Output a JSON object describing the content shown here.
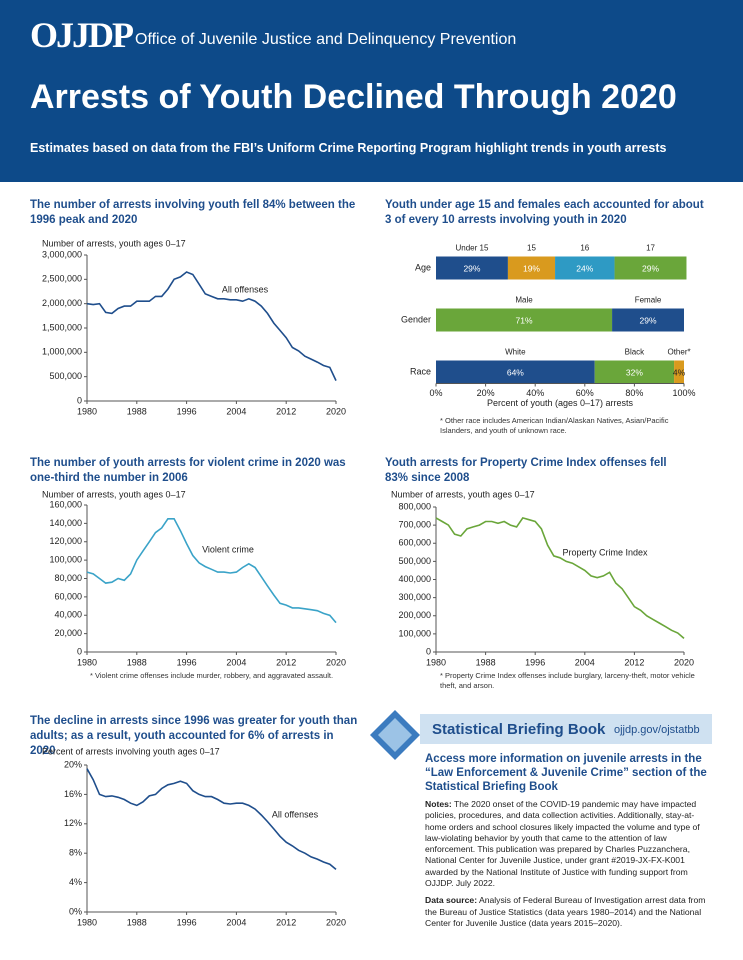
{
  "header": {
    "logo": "OJJDP",
    "org": "Office of Juvenile Justice and Delinquency Prevention",
    "title": "Arrests of Youth Declined Through 2020",
    "subtitle": "Estimates based on data from the FBI’s Uniform Crime Reporting Program highlight trends in youth arrests"
  },
  "chart_data": [
    {
      "type": "line",
      "title": "The number of arrests involving youth fell 84% between the 1996 peak and 2020",
      "ylabel": "Number of arrests, youth ages 0–17",
      "annotation": "All offenses",
      "color": "#1f4e8c",
      "x": [
        1980,
        1981,
        1982,
        1983,
        1984,
        1985,
        1986,
        1987,
        1988,
        1989,
        1990,
        1991,
        1992,
        1993,
        1994,
        1995,
        1996,
        1997,
        1998,
        1999,
        2000,
        2001,
        2002,
        2003,
        2004,
        2005,
        2006,
        2007,
        2008,
        2009,
        2010,
        2011,
        2012,
        2013,
        2014,
        2015,
        2016,
        2017,
        2018,
        2019,
        2020
      ],
      "values": [
        2000000,
        1980000,
        2000000,
        1820000,
        1800000,
        1900000,
        1950000,
        1950000,
        2050000,
        2050000,
        2050000,
        2150000,
        2150000,
        2300000,
        2500000,
        2550000,
        2650000,
        2600000,
        2400000,
        2200000,
        2150000,
        2100000,
        2100000,
        2080000,
        2080000,
        2050000,
        2100000,
        2050000,
        1950000,
        1800000,
        1600000,
        1450000,
        1300000,
        1100000,
        1030000,
        920000,
        860000,
        800000,
        730000,
        690000,
        420000
      ],
      "xlim": [
        1980,
        2020
      ],
      "xticks": [
        1980,
        1988,
        1996,
        2004,
        2012,
        2020
      ],
      "ylim": [
        0,
        3000000
      ],
      "yticks": [
        0,
        {
          "value": 500000,
          "label": "500,000"
        },
        {
          "value": 1000000,
          "label": "1,000,000"
        },
        {
          "value": 1500000,
          "label": "1,500,000"
        },
        {
          "value": 2000000,
          "label": "2,000,000"
        },
        {
          "value": 2500000,
          "label": "2,500,000"
        },
        {
          "value": 3000000,
          "label": "3,000,000"
        }
      ]
    },
    {
      "type": "stacked_bar",
      "title": "Youth under age 15 and females each accounted for about 3 of every 10 arrests involving youth in 2020",
      "xlabel": "Percent of youth (ages 0–17) arrests",
      "footnote": "* Other race includes American Indian/Alaskan Natives, Asian/Pacific Islanders, and youth of unknown race.",
      "rows": [
        {
          "label": "Age",
          "segments": [
            "Under 15",
            "15",
            "16",
            "17"
          ],
          "values": [
            29,
            19,
            24,
            29
          ],
          "value_labels": [
            "29%",
            "19%",
            "24%",
            "29%"
          ],
          "colors": [
            "#1f4e8c",
            "#d99a1e",
            "#2e9ac4",
            "#6aa63a"
          ]
        },
        {
          "label": "Gender",
          "segments": [
            "Male",
            "Female"
          ],
          "values": [
            71,
            29
          ],
          "value_labels": [
            "71%",
            "29%"
          ],
          "colors": [
            "#6aa63a",
            "#1f4e8c"
          ]
        },
        {
          "label": "Race",
          "segments": [
            "White",
            "Black",
            "Other*"
          ],
          "values": [
            64,
            32,
            4
          ],
          "value_labels": [
            "64%",
            "32%",
            "4%"
          ],
          "colors": [
            "#1f4e8c",
            "#6aa63a",
            "#d99a1e"
          ]
        }
      ],
      "xlim": [
        0,
        100
      ],
      "xticks": [
        {
          "value": 0,
          "label": "0%"
        },
        {
          "value": 20,
          "label": "20%"
        },
        {
          "value": 40,
          "label": "40%"
        },
        {
          "value": 60,
          "label": "60%"
        },
        {
          "value": 80,
          "label": "80%"
        },
        {
          "value": 100,
          "label": "100%"
        }
      ]
    },
    {
      "type": "line",
      "title": "The number of youth arrests for violent crime in 2020 was one-third the number in 2006",
      "ylabel": "Number of arrests, youth ages 0–17",
      "annotation": "Violent crime",
      "footnote": "* Violent crime offenses include murder, robbery, and aggravated assault.",
      "color": "#3aa3c8",
      "x": [
        1980,
        1981,
        1982,
        1983,
        1984,
        1985,
        1986,
        1987,
        1988,
        1989,
        1990,
        1991,
        1992,
        1993,
        1994,
        1995,
        1996,
        1997,
        1998,
        1999,
        2000,
        2001,
        2002,
        2003,
        2004,
        2005,
        2006,
        2007,
        2008,
        2009,
        2010,
        2011,
        2012,
        2013,
        2014,
        2015,
        2016,
        2017,
        2018,
        2019,
        2020
      ],
      "values": [
        87000,
        85000,
        80000,
        75000,
        76000,
        80000,
        78000,
        85000,
        100000,
        110000,
        120000,
        130000,
        135000,
        145000,
        145000,
        132000,
        118000,
        105000,
        97000,
        93000,
        90000,
        87000,
        87000,
        86000,
        87000,
        92000,
        96000,
        92000,
        82000,
        72000,
        62000,
        53000,
        51000,
        48000,
        48000,
        47000,
        46000,
        45000,
        42000,
        40000,
        32000
      ],
      "xlim": [
        1980,
        2020
      ],
      "xticks": [
        1980,
        1988,
        1996,
        2004,
        2012,
        2020
      ],
      "ylim": [
        0,
        160000
      ],
      "yticks": [
        0,
        {
          "value": 20000,
          "label": "20,000"
        },
        {
          "value": 40000,
          "label": "40,000"
        },
        {
          "value": 60000,
          "label": "60,000"
        },
        {
          "value": 80000,
          "label": "80,000"
        },
        {
          "value": 100000,
          "label": "100,000"
        },
        {
          "value": 120000,
          "label": "120,000"
        },
        {
          "value": 140000,
          "label": "140,000"
        },
        {
          "value": 160000,
          "label": "160,000"
        }
      ]
    },
    {
      "type": "line",
      "title": "Youth arrests for Property Crime Index offenses fell 83% since 2008",
      "ylabel": "Number of arrests, youth ages 0–17",
      "annotation": "Property Crime Index",
      "footnote": "* Property Crime Index offenses include burglary, larceny-theft, motor vehicle theft, and arson.",
      "color": "#6aa63a",
      "x": [
        1980,
        1981,
        1982,
        1983,
        1984,
        1985,
        1986,
        1987,
        1988,
        1989,
        1990,
        1991,
        1992,
        1993,
        1994,
        1995,
        1996,
        1997,
        1998,
        1999,
        2000,
        2001,
        2002,
        2003,
        2004,
        2005,
        2006,
        2007,
        2008,
        2009,
        2010,
        2011,
        2012,
        2013,
        2014,
        2015,
        2016,
        2017,
        2018,
        2019,
        2020
      ],
      "values": [
        740000,
        720000,
        700000,
        650000,
        640000,
        680000,
        690000,
        700000,
        720000,
        720000,
        710000,
        720000,
        700000,
        690000,
        740000,
        730000,
        720000,
        680000,
        590000,
        530000,
        520000,
        500000,
        490000,
        470000,
        450000,
        420000,
        410000,
        420000,
        440000,
        380000,
        350000,
        300000,
        250000,
        230000,
        200000,
        180000,
        160000,
        140000,
        120000,
        105000,
        75000
      ],
      "xlim": [
        1980,
        2020
      ],
      "xticks": [
        1980,
        1988,
        1996,
        2004,
        2012,
        2020
      ],
      "ylim": [
        0,
        800000
      ],
      "yticks": [
        0,
        {
          "value": 100000,
          "label": "100,000"
        },
        {
          "value": 200000,
          "label": "200,000"
        },
        {
          "value": 300000,
          "label": "300,000"
        },
        {
          "value": 400000,
          "label": "400,000"
        },
        {
          "value": 500000,
          "label": "500,000"
        },
        {
          "value": 600000,
          "label": "600,000"
        },
        {
          "value": 700000,
          "label": "700,000"
        },
        {
          "value": 800000,
          "label": "800,000"
        }
      ]
    },
    {
      "type": "line",
      "title": "The decline in arrests since 1996 was greater for youth than adults; as a result, youth accounted for 6% of arrests in 2020",
      "ylabel": "Percent of arrests involving youth ages 0–17",
      "annotation": "All offenses",
      "color": "#1f4e8c",
      "x": [
        1980,
        1981,
        1982,
        1983,
        1984,
        1985,
        1986,
        1987,
        1988,
        1989,
        1990,
        1991,
        1992,
        1993,
        1994,
        1995,
        1996,
        1997,
        1998,
        1999,
        2000,
        2001,
        2002,
        2003,
        2004,
        2005,
        2006,
        2007,
        2008,
        2009,
        2010,
        2011,
        2012,
        2013,
        2014,
        2015,
        2016,
        2017,
        2018,
        2019,
        2020
      ],
      "values": [
        19.5,
        18,
        16,
        15.7,
        15.8,
        15.6,
        15.3,
        14.8,
        14.5,
        15,
        15.8,
        16,
        16.8,
        17.3,
        17.5,
        17.8,
        17.5,
        16.5,
        16,
        15.7,
        15.7,
        15.3,
        14.8,
        14.7,
        14.8,
        14.8,
        14.5,
        14,
        13.2,
        12.3,
        11.3,
        10.3,
        9.5,
        9,
        8.4,
        8,
        7.5,
        7.2,
        6.8,
        6.5,
        5.8
      ],
      "xlim": [
        1980,
        2020
      ],
      "xticks": [
        1980,
        1988,
        1996,
        2004,
        2012,
        2020
      ],
      "ylim": [
        0,
        20
      ],
      "yticks": [
        {
          "value": 0,
          "label": "0%"
        },
        {
          "value": 4,
          "label": "4%"
        },
        {
          "value": 8,
          "label": "8%"
        },
        {
          "value": 12,
          "label": "12%"
        },
        {
          "value": 16,
          "label": "16%"
        },
        {
          "value": 20,
          "label": "20%"
        }
      ]
    }
  ],
  "sidebar": {
    "title": "Statistical Briefing Book",
    "url": "ojjdp.gov/ojstatbb",
    "heading": "Access more information on juvenile arrests in the “Law Enforcement & Juvenile Crime” section of the Statistical Briefing Book",
    "notes_label": "Notes:",
    "notes": "The 2020 onset of the COVID-19 pandemic may have impacted policies, procedures, and data collection activities. Additionally, stay-at-home orders and school closures likely impacted the volume and type of law-violating behavior by youth that came to the attention of law enforcement. This publication was prepared by Charles Puzzanchera, National Center for Juvenile Justice, under grant #2019-JX-FX-K001 awarded by the National Institute of Justice with funding support from OJJDP. July 2022.",
    "source_label": "Data source:",
    "source": "Analysis of Federal Bureau of Investigation arrest data from the Bureau of Justice Statistics (data years 1980–2014) and the National Center for Juvenile Justice (data years 2015–2020)."
  }
}
